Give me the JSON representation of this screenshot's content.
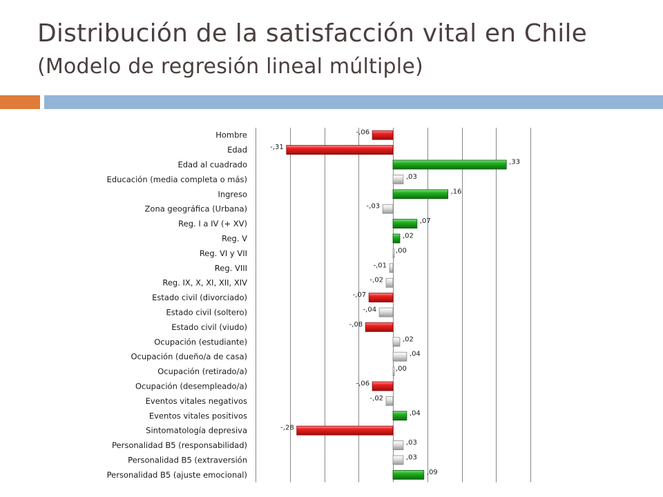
{
  "slide": {
    "title": "Distribución de la satisfacción vital en Chile",
    "subtitle": "(Modelo de regresión lineal múltiple)"
  },
  "colors": {
    "positive_significant": "#1fa31f",
    "negative_significant": "#e52222",
    "non_significant": "#d7d7d7",
    "grid": "#888888",
    "title": "#4b3f3f",
    "accent_orange": "#e07b39",
    "accent_blue": "#94b4d6"
  },
  "chart_data": {
    "type": "bar",
    "orientation": "horizontal",
    "xlim": [
      -0.4,
      0.4
    ],
    "grid": true,
    "categories": [
      "Hombre",
      "Edad",
      "Edad al cuadrado",
      "Educación (media completa o más)",
      "Ingreso",
      "Zona geográfica (Urbana)",
      "Reg. I a IV (+ XV)",
      "Reg. V",
      "Reg. VI y VII",
      "Reg. VIII",
      "Reg. IX, X, XI, XII, XIV",
      "Estado civil (divorciado)",
      "Estado civil (soltero)",
      "Estado civil (viudo)",
      "Ocupación (estudiante)",
      "Ocupación (dueño/a de casa)",
      "Ocupación (retirado/a)",
      "Ocupación (desempleado/a)",
      "Eventos vitales negativos",
      "Eventos vitales positivos",
      "Sintomatología depresiva",
      "Personalidad B5 (responsabilidad)",
      "Personalidad B5 (extraversión",
      "Personalidad B5 (ajuste emocional)"
    ],
    "values": [
      -0.06,
      -0.31,
      0.33,
      0.03,
      0.16,
      -0.03,
      0.07,
      0.02,
      0.0,
      -0.01,
      -0.02,
      -0.07,
      -0.04,
      -0.08,
      0.02,
      0.04,
      0.0,
      -0.06,
      -0.02,
      0.04,
      -0.28,
      0.03,
      0.03,
      0.09
    ],
    "value_labels": [
      "-,06",
      "-,31",
      ",33",
      ",03",
      ",16",
      "-,03",
      ",07",
      ",02",
      ",00",
      "-,01",
      "-,02",
      "-,07",
      "-,04",
      "-,08",
      ",02",
      ",04",
      ",00",
      "-,06",
      "-,02",
      ",04",
      "-,28",
      ",03",
      ",03",
      ",09"
    ],
    "significance": [
      "sig",
      "sig",
      "sig",
      "ns",
      "sig",
      "ns",
      "sig",
      "sig",
      "ns",
      "ns",
      "ns",
      "sig",
      "ns",
      "sig",
      "ns",
      "ns",
      "ns",
      "sig",
      "ns",
      "sig",
      "sig",
      "ns",
      "ns",
      "sig"
    ]
  }
}
